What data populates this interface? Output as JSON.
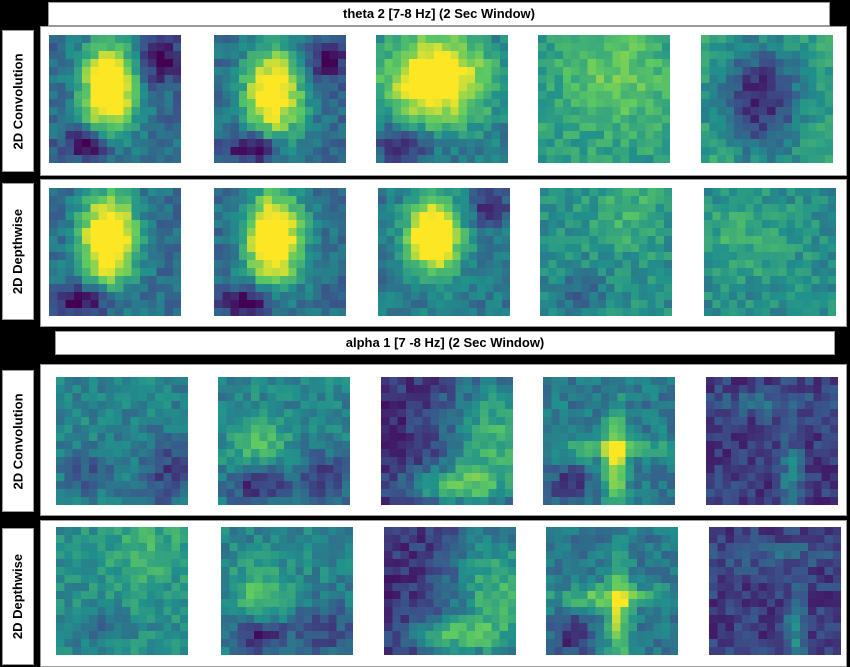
{
  "sections": [
    {
      "title": "theta 2 [7-8 Hz] (2 Sec Window)",
      "rows": [
        {
          "label": "2D Convolution",
          "count": 5
        },
        {
          "label": "2D Depthwise",
          "count": 5
        }
      ]
    },
    {
      "title": "alpha 1 [7 -8 Hz] (2 Sec Window)",
      "rows": [
        {
          "label": "2D Convolution",
          "count": 5
        },
        {
          "label": "2D Depthwise",
          "count": 5
        }
      ]
    }
  ],
  "colormap": [
    "#440154",
    "#3b528b",
    "#21918c",
    "#5ec962",
    "#fde725"
  ]
}
